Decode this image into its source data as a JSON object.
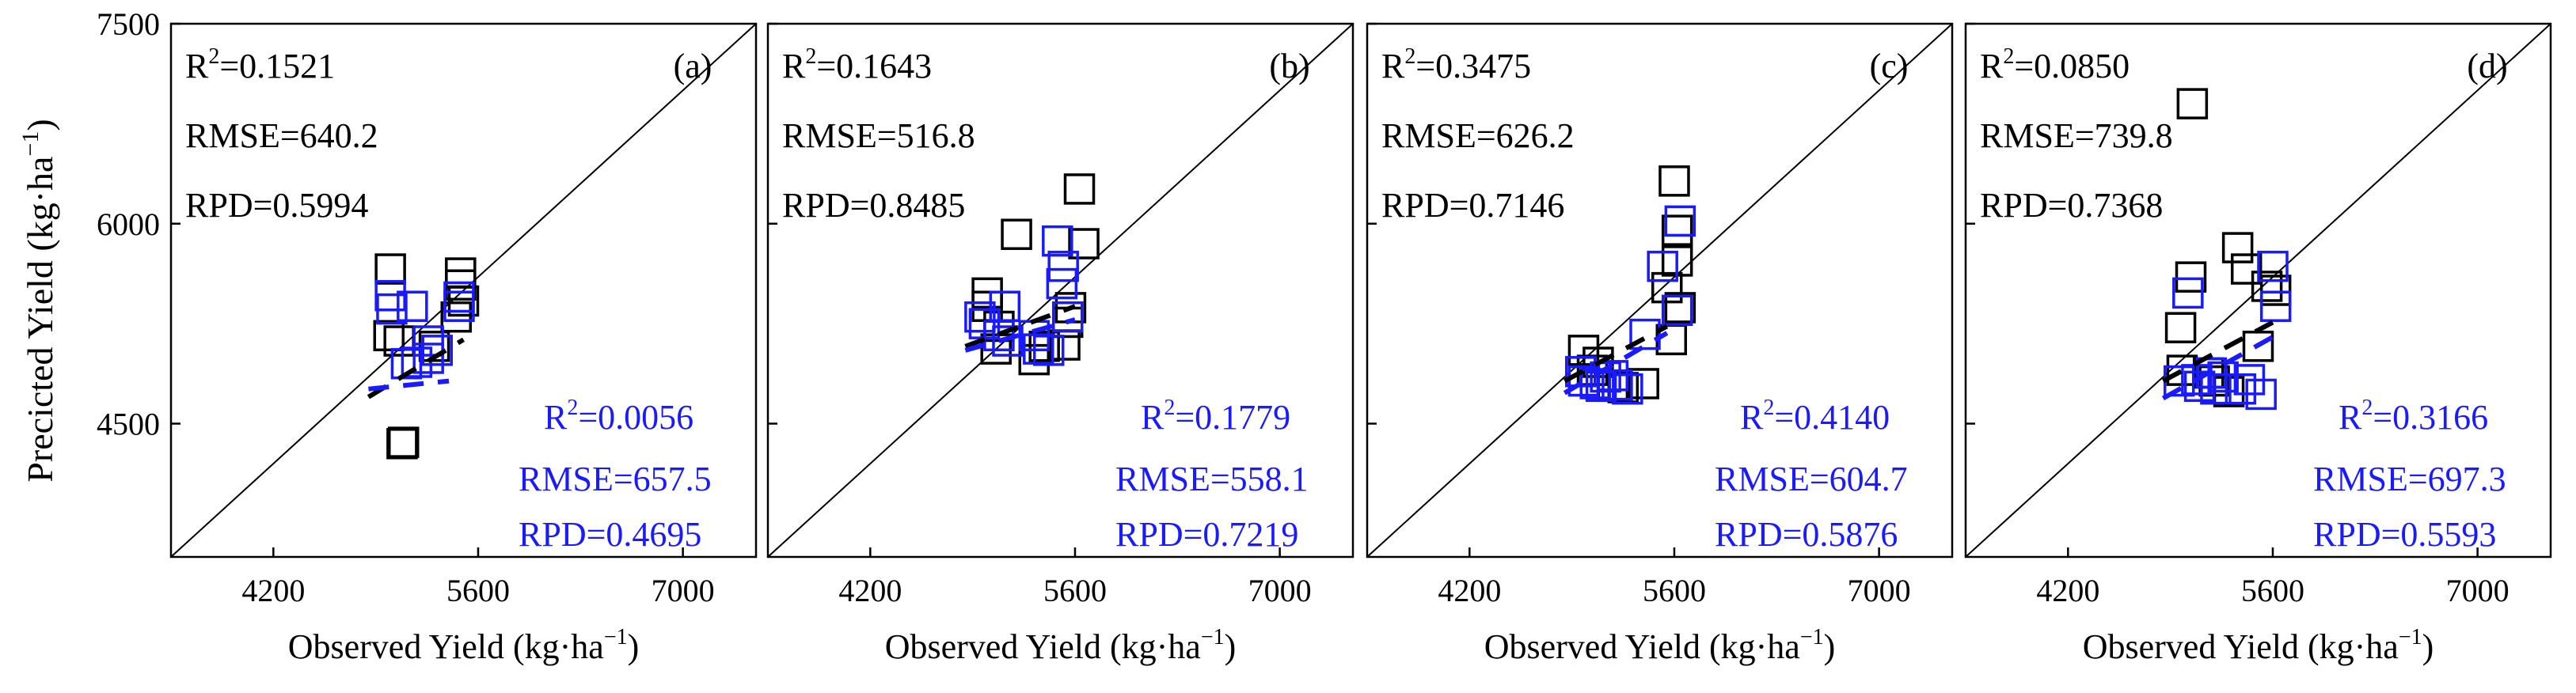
{
  "colors": {
    "black": "#000000",
    "blue": "#1a1aff",
    "frame": "#000000"
  },
  "y_axis_label": "Precicted Yield (kg·ha",
  "y_axis_label_sup": "−1",
  "y_axis_label_end": ")",
  "chart_data": [
    {
      "type": "scatter",
      "panel_label": "(a)",
      "xlabel": "Observed Yield (kg·ha",
      "xlabel_sup": "−1",
      "xlabel_end": ")",
      "xlim": [
        3500,
        7500
      ],
      "ylim": [
        3500,
        7500
      ],
      "xticks": [
        "4200",
        "5600",
        "7000"
      ],
      "yticks": [
        "7500",
        "6000",
        "4500"
      ],
      "stats_black": {
        "r2": "=0.1521",
        "rmse": "RMSE=640.2",
        "rpd": "RPD=0.5994"
      },
      "stats_blue": {
        "r2": "=0.0056",
        "rmse": "RMSE=657.5",
        "rpd": "RPD=0.4695"
      },
      "series": [
        {
          "name": "black",
          "points": [
            [
              5000,
              5660
            ],
            [
              5060,
              5120
            ],
            [
              4990,
              5160
            ],
            [
              5480,
              5630
            ],
            [
              5450,
              5300
            ],
            [
              5500,
              5420
            ],
            [
              5480,
              5540
            ],
            [
              5300,
              5080
            ],
            [
              5090,
              4360
            ],
            [
              5080,
              4350
            ]
          ]
        },
        {
          "name": "blue",
          "points": [
            [
              5150,
              5380
            ],
            [
              5000,
              5460
            ],
            [
              5010,
              5360
            ],
            [
              5470,
              5450
            ],
            [
              5470,
              5380
            ],
            [
              5260,
              5120
            ],
            [
              5110,
              4950
            ],
            [
              5260,
              4990
            ],
            [
              5180,
              4960
            ],
            [
              5320,
              5050
            ]
          ]
        }
      ],
      "fit_black": [
        [
          4850,
          4700
        ],
        [
          5500,
          5130
        ]
      ],
      "fit_blue": [
        [
          4850,
          4760
        ],
        [
          5400,
          4820
        ]
      ]
    },
    {
      "type": "scatter",
      "panel_label": "(b)",
      "xlabel": "Observed Yield (kg·ha",
      "xlabel_sup": "−1",
      "xlabel_end": ")",
      "xlim": [
        3500,
        7500
      ],
      "ylim": [
        3500,
        7500
      ],
      "xticks": [
        "4200",
        "5600",
        "7000"
      ],
      "yticks": [
        "7500",
        "6000",
        "4500"
      ],
      "stats_black": {
        "r2": "=0.1643",
        "rmse": "RMSE=516.8",
        "rpd": "RPD=0.8485"
      },
      "stats_blue": {
        "r2": "=0.1779",
        "rmse": "RMSE=558.1",
        "rpd": "RPD=0.7219"
      },
      "series": [
        {
          "name": "black",
          "points": [
            [
              5000,
              5480
            ],
            [
              5000,
              5380
            ],
            [
              5080,
              5230
            ],
            [
              5060,
              5060
            ],
            [
              5390,
              5080
            ],
            [
              5630,
              6260
            ],
            [
              5660,
              5850
            ],
            [
              5570,
              5370
            ],
            [
              5320,
              4980
            ],
            [
              5200,
              5920
            ],
            [
              5550,
              5260
            ],
            [
              5530,
              5090
            ]
          ]
        },
        {
          "name": "blue",
          "points": [
            [
              4950,
              5300
            ],
            [
              5120,
              5380
            ],
            [
              5080,
              5160
            ],
            [
              5140,
              5120
            ],
            [
              5350,
              5060
            ],
            [
              5420,
              5050
            ],
            [
              5480,
              5870
            ],
            [
              5520,
              5680
            ],
            [
              5510,
              5550
            ],
            [
              5550,
              5300
            ],
            [
              5320,
              5160
            ],
            [
              4980,
              5250
            ]
          ]
        }
      ],
      "fit_black": [
        [
          4850,
          5080
        ],
        [
          5600,
          5380
        ]
      ],
      "fit_blue": [
        [
          4850,
          5050
        ],
        [
          5600,
          5280
        ]
      ]
    },
    {
      "type": "scatter",
      "panel_label": "(c)",
      "xlabel": "Observed Yield (kg·ha",
      "xlabel_sup": "−1",
      "xlabel_end": ")",
      "xlim": [
        3500,
        7500
      ],
      "ylim": [
        3500,
        7500
      ],
      "xticks": [
        "4200",
        "5600",
        "7000"
      ],
      "yticks": [
        "7500",
        "6000",
        "4500"
      ],
      "stats_black": {
        "r2": "=0.3475",
        "rmse": "RMSE=626.2",
        "rpd": "RPD=0.7146"
      },
      "stats_blue": {
        "r2": "=0.4140",
        "rmse": "RMSE=604.7",
        "rpd": "RPD=0.5876"
      },
      "series": [
        {
          "name": "black",
          "points": [
            [
              4980,
              5050
            ],
            [
              5040,
              4900
            ],
            [
              5080,
              4960
            ],
            [
              5180,
              4780
            ],
            [
              5250,
              4770
            ],
            [
              5390,
              4800
            ],
            [
              5550,
              5520
            ],
            [
              5620,
              5720
            ],
            [
              5600,
              6320
            ],
            [
              5620,
              5950
            ],
            [
              5640,
              5370
            ],
            [
              5580,
              5130
            ]
          ]
        },
        {
          "name": "blue",
          "points": [
            [
              4960,
              4890
            ],
            [
              4980,
              4820
            ],
            [
              5130,
              4850
            ],
            [
              5100,
              4780
            ],
            [
              5210,
              4790
            ],
            [
              5280,
              4760
            ],
            [
              5520,
              5680
            ],
            [
              5640,
              6020
            ],
            [
              5620,
              5350
            ],
            [
              5400,
              5170
            ],
            [
              5060,
              4800
            ],
            [
              5180,
              4860
            ]
          ]
        }
      ],
      "fit_black": [
        [
          4850,
          4820
        ],
        [
          5550,
          5230
        ]
      ],
      "fit_blue": [
        [
          4850,
          4730
        ],
        [
          5550,
          5180
        ]
      ]
    },
    {
      "type": "scatter",
      "panel_label": "(d)",
      "xlabel": "Observed Yield (kg·ha",
      "xlabel_sup": "−1",
      "xlabel_end": ")",
      "xlim": [
        3500,
        7500
      ],
      "ylim": [
        3500,
        7500
      ],
      "xticks": [
        "4200",
        "5600",
        "7000"
      ],
      "yticks": [
        "7500",
        "6000",
        "4500"
      ],
      "stats_black": {
        "r2": "=0.0850",
        "rmse": "RMSE=739.8",
        "rpd": "RPD=0.7368"
      },
      "stats_blue": {
        "r2": "=0.3166",
        "rmse": "RMSE=697.3",
        "rpd": "RPD=0.5593"
      },
      "series": [
        {
          "name": "black",
          "points": [
            [
              5050,
              6900
            ],
            [
              5040,
              5600
            ],
            [
              4970,
              5220
            ],
            [
              4980,
              4900
            ],
            [
              5160,
              4880
            ],
            [
              5360,
              5820
            ],
            [
              5420,
              5660
            ],
            [
              5560,
              5530
            ],
            [
              5620,
              5500
            ],
            [
              5500,
              5080
            ],
            [
              5300,
              4740
            ],
            [
              5200,
              4820
            ]
          ]
        },
        {
          "name": "blue",
          "points": [
            [
              4960,
              4820
            ],
            [
              5020,
              5480
            ],
            [
              5100,
              4780
            ],
            [
              5180,
              4880
            ],
            [
              5210,
              4760
            ],
            [
              5260,
              4850
            ],
            [
              5380,
              4760
            ],
            [
              5520,
              4720
            ],
            [
              5600,
              5680
            ],
            [
              5620,
              5380
            ],
            [
              5440,
              4830
            ],
            [
              5080,
              4830
            ]
          ]
        }
      ],
      "fit_black": [
        [
          4850,
          4820
        ],
        [
          5600,
          5260
        ]
      ],
      "fit_blue": [
        [
          4850,
          4690
        ],
        [
          5600,
          5150
        ]
      ]
    }
  ]
}
